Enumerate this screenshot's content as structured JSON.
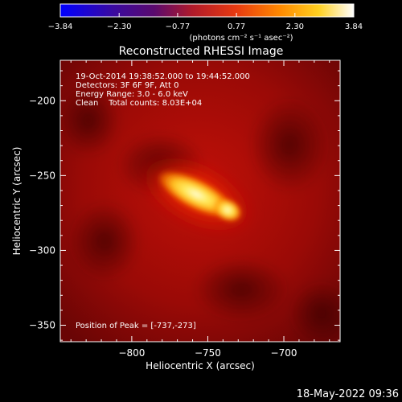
{
  "chart_data": {
    "type": "heatmap",
    "title": "Reconstructed RHESSI Image",
    "xlabel": "Heliocentric X (arcsec)",
    "ylabel": "Heliocentric Y (arcsec)",
    "xlim": [
      -847,
      -663
    ],
    "ylim": [
      -361,
      -173
    ],
    "x_ticks": [
      -800,
      -750,
      -700
    ],
    "y_ticks": [
      -350,
      -300,
      -250,
      -200
    ],
    "colorbar": {
      "range": [
        -3.84,
        3.84
      ],
      "ticks": [
        "-3.84",
        "-2.30",
        "-0.77",
        "0.77",
        "2.30",
        "3.84"
      ],
      "unit": "(photons cm⁻² s⁻¹ asec⁻²)"
    },
    "annotations": [
      "19-Oct-2014 19:38:52.000 to 19:44:52.000",
      "Detectors: 3F 6F 9F, Att 0",
      "Energy Range: 3.0 - 6.0 keV",
      "Clean    Total counts: 8.03E+04"
    ],
    "peak_label": "Position of Peak = [-737,-273]",
    "peak": {
      "x": -737,
      "y": -273
    },
    "source_axis_end": {
      "x": -778,
      "y": -252
    }
  },
  "footer": {
    "date": "18-May-2022 09:36"
  }
}
